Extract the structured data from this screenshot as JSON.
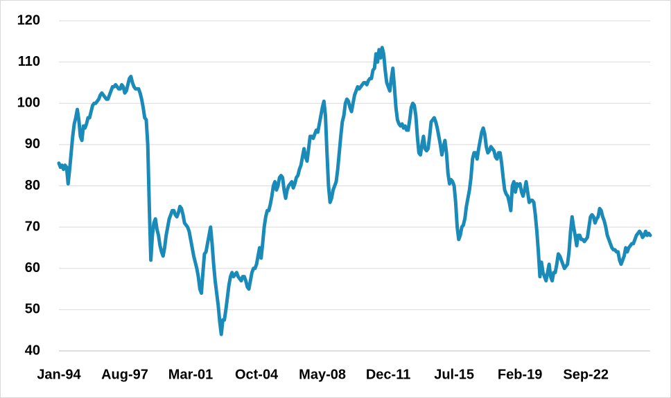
{
  "chart_data": {
    "type": "line",
    "categories": [
      "Jan-94",
      null,
      null,
      null,
      null,
      null,
      null,
      null,
      null,
      null,
      null,
      null,
      null,
      null,
      null,
      null,
      null,
      null,
      null,
      null,
      null,
      null,
      null,
      null,
      null,
      null,
      null,
      null,
      null,
      null,
      null,
      null,
      null,
      null,
      null,
      null,
      null,
      null,
      null,
      null,
      null,
      null,
      null,
      "Aug-97",
      null,
      null,
      null,
      null,
      null,
      null,
      null,
      null,
      null,
      null,
      null,
      null,
      null,
      null,
      null,
      null,
      null,
      null,
      null,
      null,
      null,
      null,
      null,
      null,
      null,
      null,
      null,
      null,
      null,
      null,
      null,
      null,
      null,
      null,
      null,
      null,
      null,
      null,
      null,
      null,
      null,
      null,
      "Mar-01",
      null,
      null,
      null,
      null,
      null,
      null,
      null,
      null,
      null,
      null,
      null,
      null,
      null,
      null,
      null,
      null,
      null,
      null,
      null,
      null,
      null,
      null,
      null,
      null,
      null,
      null,
      null,
      null,
      null,
      null,
      null,
      null,
      null,
      null,
      null,
      null,
      null,
      null,
      null,
      null,
      null,
      null,
      "Oct-04",
      null,
      null,
      null,
      null,
      null,
      null,
      null,
      null,
      null,
      null,
      null,
      null,
      null,
      null,
      null,
      null,
      null,
      null,
      null,
      null,
      null,
      null,
      null,
      null,
      null,
      null,
      null,
      null,
      null,
      null,
      null,
      null,
      null,
      null,
      null,
      null,
      null,
      null,
      null,
      null,
      null,
      null,
      "May-08",
      null,
      null,
      null,
      null,
      null,
      null,
      null,
      null,
      null,
      null,
      null,
      null,
      null,
      null,
      null,
      null,
      null,
      null,
      null,
      null,
      null,
      null,
      null,
      null,
      null,
      null,
      null,
      null,
      null,
      null,
      null,
      null,
      null,
      null,
      null,
      null,
      null,
      null,
      null,
      null,
      null,
      null,
      "Dec-11",
      null,
      null,
      null,
      null,
      null,
      null,
      null,
      null,
      null,
      null,
      null,
      null,
      null,
      null,
      null,
      null,
      null,
      null,
      null,
      null,
      null,
      null,
      null,
      null,
      null,
      null,
      null,
      null,
      null,
      null,
      null,
      null,
      null,
      null,
      null,
      null,
      null,
      null,
      null,
      null,
      null,
      null,
      "Jul-15",
      null,
      null,
      null,
      null,
      null,
      null,
      null,
      null,
      null,
      null,
      null,
      null,
      null,
      null,
      null,
      null,
      null,
      null,
      null,
      null,
      null,
      null,
      null,
      null,
      null,
      null,
      null,
      null,
      null,
      null,
      null,
      null,
      null,
      null,
      null,
      null,
      null,
      null,
      null,
      null,
      null,
      null,
      "Feb-19",
      null,
      null,
      null,
      null,
      null,
      null,
      null,
      null,
      null,
      null,
      null,
      null,
      null,
      null,
      null,
      null,
      null,
      null,
      null,
      null,
      null,
      null,
      null,
      null,
      null,
      null,
      null,
      null,
      null,
      null,
      null,
      null,
      null,
      null,
      null,
      null,
      null,
      null,
      null,
      null,
      null,
      null,
      "Sep-22",
      null,
      null,
      null,
      null,
      null,
      null,
      null,
      null,
      null,
      null,
      null,
      null,
      null,
      null,
      null,
      null,
      null,
      null,
      null,
      null,
      null,
      null,
      null,
      null,
      null,
      null,
      null,
      null,
      null,
      null,
      null,
      null,
      null,
      null,
      null,
      null,
      null,
      null,
      null,
      null,
      null,
      null
    ],
    "series": [
      {
        "color": "#1a8ab8",
        "values": [
          85.5,
          84.5,
          85,
          84,
          85,
          84.5,
          80.5,
          84,
          88,
          92,
          95,
          96.5,
          98.5,
          96,
          92,
          91,
          94.5,
          94,
          95,
          96.5,
          96.5,
          98,
          99.5,
          100,
          100,
          100.5,
          101,
          102,
          102.5,
          102,
          101.5,
          101,
          101,
          102,
          103,
          104,
          104,
          104.5,
          104,
          103.5,
          103.5,
          104.5,
          104,
          102.5,
          103,
          104.5,
          106,
          106.5,
          105,
          104,
          103.5,
          103.5,
          103.5,
          102.5,
          101,
          99,
          96.5,
          96,
          90,
          75,
          62,
          68,
          71,
          72,
          69.5,
          68,
          65.5,
          64,
          63,
          65,
          68,
          70,
          72,
          73,
          74,
          74,
          73,
          72.5,
          73.5,
          75,
          74.5,
          73,
          71,
          70.5,
          70,
          69,
          67,
          65,
          63,
          61.5,
          60,
          58,
          55,
          54,
          59,
          63.5,
          64,
          66,
          68,
          70,
          66,
          61,
          57,
          54,
          51,
          47,
          44,
          47.5,
          47.5,
          50,
          53,
          56,
          58,
          59,
          58,
          58.5,
          59,
          58,
          57.5,
          57,
          58,
          58,
          57,
          55.5,
          55,
          57,
          59,
          60,
          60,
          61,
          63,
          65,
          62.5,
          66,
          70,
          72.5,
          74,
          74,
          75.5,
          77.5,
          80,
          81,
          79,
          80,
          82,
          82.5,
          82,
          79,
          77,
          79,
          80,
          80.5,
          81,
          79.5,
          80.5,
          82,
          82.5,
          84,
          85,
          87,
          89,
          87,
          86,
          89,
          92,
          92,
          91.5,
          92.5,
          93.5,
          93,
          95,
          97,
          99,
          100.5,
          97,
          88,
          80,
          76,
          77,
          79,
          80,
          81,
          84,
          88,
          92,
          95.5,
          97,
          100,
          101,
          100.5,
          99,
          98,
          100,
          102,
          103,
          104,
          103.5,
          104,
          104.5,
          105,
          105,
          104.5,
          105.5,
          106,
          106,
          108,
          108.5,
          112,
          110,
          113,
          111,
          113.5,
          112,
          108,
          105,
          104,
          103,
          106,
          108.5,
          104,
          99,
          96,
          95,
          94.5,
          95,
          94,
          94.5,
          93.5,
          93.5,
          96,
          99,
          100,
          99.5,
          97,
          92,
          88,
          87.5,
          90,
          92,
          89,
          88.5,
          89,
          92,
          95.5,
          96,
          96.5,
          95.5,
          94,
          92,
          90,
          87.5,
          89.5,
          91,
          88,
          83,
          80.5,
          81.5,
          81,
          80,
          76,
          70,
          67,
          68,
          70,
          70.5,
          72,
          75,
          77,
          79,
          82,
          86.5,
          88,
          88,
          86.5,
          89,
          91,
          93,
          94,
          92.5,
          89.5,
          88,
          88.5,
          89.5,
          89,
          88.5,
          87,
          86.5,
          88,
          88,
          85.5,
          82,
          79,
          78,
          77.5,
          76,
          74,
          80,
          81,
          78.5,
          80.5,
          80,
          80.5,
          78.5,
          77.5,
          79,
          81,
          78.5,
          76,
          76.5,
          76.5,
          76,
          73,
          69,
          64,
          58,
          61.5,
          59,
          58,
          57,
          59,
          61,
          58,
          57,
          59,
          59,
          61,
          63.5,
          63,
          62,
          61,
          60,
          60.5,
          61,
          64,
          69,
          72.5,
          70,
          68,
          65.5,
          68,
          68,
          67,
          67,
          66.5,
          67,
          67.5,
          70,
          72.5,
          73,
          72.5,
          71,
          72,
          72.5,
          74.5,
          74,
          72.5,
          71.5,
          70,
          68,
          67,
          66,
          65,
          64.5,
          64.5,
          64,
          64,
          62,
          61,
          62,
          63,
          65,
          64,
          65,
          65.5,
          66,
          66,
          67,
          68,
          68.5,
          69,
          68.5,
          67.5,
          68,
          69,
          68,
          68.5,
          68
        ]
      }
    ],
    "ylim": [
      40,
      120
    ],
    "yticks": [
      40,
      50,
      60,
      70,
      80,
      90,
      100,
      110,
      120
    ],
    "grid": true
  }
}
